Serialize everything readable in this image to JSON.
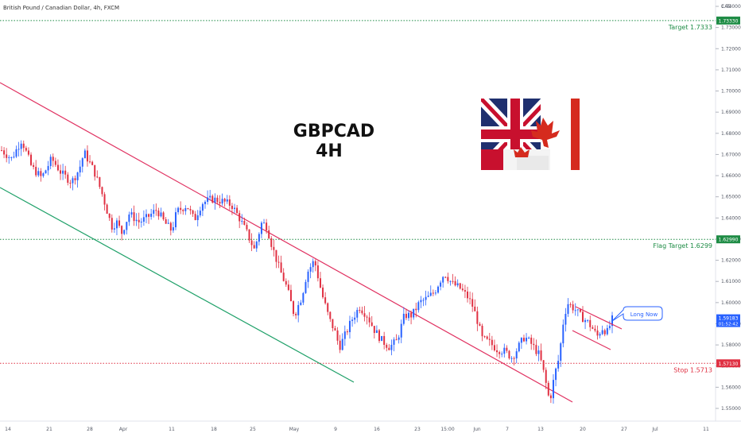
{
  "header": {
    "symbol_title": "British Pound / Canadian Dollar, 4h, FXCM",
    "currency": "CAD"
  },
  "annotations": {
    "pair": "GBPCAD",
    "timeframe": "4H",
    "callout": "Long Now"
  },
  "levels": [
    {
      "name": "target",
      "label": "Target 1.7333",
      "price": 1.7333,
      "tag": "1.73330",
      "color": "#1e8c45",
      "style": "dotted"
    },
    {
      "name": "flag-target",
      "label": "Flag Target 1.6299",
      "price": 1.6299,
      "tag": "1.62990",
      "color": "#1e8c45",
      "style": "dotted"
    },
    {
      "name": "stop",
      "label": "Stop 1.5713",
      "price": 1.5713,
      "tag": "1.57130",
      "color": "#e03042",
      "style": "dotted"
    }
  ],
  "current_price": {
    "tag": "1.59183",
    "sub": "01:52:42",
    "price": 1.59183,
    "color": "#2962ff"
  },
  "colors": {
    "bull": "#2962ff",
    "bear": "#e03042",
    "channel_upper": "#e03060",
    "channel_lower": "#1ea068",
    "flag": "#e03060",
    "callout_border": "#2962ff"
  },
  "chart_data": {
    "type": "candlestick",
    "title": "British Pound / Canadian Dollar, 4h, FXCM",
    "y_axis_label": "CAD",
    "ylim": [
      1.544,
      1.748
    ],
    "price_ticks": [
      "1.74000",
      "1.73000",
      "1.72000",
      "1.71000",
      "1.70000",
      "1.69000",
      "1.68000",
      "1.67000",
      "1.66000",
      "1.65000",
      "1.64000",
      "1.63000",
      "1.62000",
      "1.61000",
      "1.60000",
      "1.59000",
      "1.58000",
      "1.57000",
      "1.56000",
      "1.55000"
    ],
    "x_ticks": [
      "14",
      "21",
      "28",
      "Apr",
      "11",
      "18",
      "25",
      "May",
      "9",
      "16",
      "23",
      "15:00",
      "Jun",
      "7",
      "13",
      "20",
      "27",
      "Jul",
      "11"
    ],
    "series_path": [
      [
        0,
        1.672
      ],
      [
        4,
        1.668
      ],
      [
        8,
        1.677
      ],
      [
        12,
        1.664
      ],
      [
        16,
        1.659
      ],
      [
        20,
        1.668
      ],
      [
        24,
        1.661
      ],
      [
        28,
        1.657
      ],
      [
        31,
        1.663
      ],
      [
        33,
        1.671
      ],
      [
        37,
        1.662
      ],
      [
        40,
        1.652
      ],
      [
        44,
        1.636
      ],
      [
        46,
        1.638
      ],
      [
        48,
        1.633
      ],
      [
        51,
        1.642
      ],
      [
        55,
        1.638
      ],
      [
        58,
        1.64
      ],
      [
        62,
        1.644
      ],
      [
        65,
        1.638
      ],
      [
        68,
        1.634
      ],
      [
        70,
        1.643
      ],
      [
        74,
        1.646
      ],
      [
        77,
        1.639
      ],
      [
        80,
        1.647
      ],
      [
        84,
        1.649
      ],
      [
        88,
        1.648
      ],
      [
        92,
        1.646
      ],
      [
        95,
        1.64
      ],
      [
        98,
        1.633
      ],
      [
        101,
        1.625
      ],
      [
        104,
        1.638
      ],
      [
        106,
        1.636
      ],
      [
        108,
        1.627
      ],
      [
        111,
        1.616
      ],
      [
        114,
        1.607
      ],
      [
        117,
        1.594
      ],
      [
        120,
        1.603
      ],
      [
        122,
        1.614
      ],
      [
        125,
        1.62
      ],
      [
        128,
        1.604
      ],
      [
        131,
        1.592
      ],
      [
        133,
        1.587
      ],
      [
        135,
        1.579
      ],
      [
        137,
        1.584
      ],
      [
        140,
        1.592
      ],
      [
        143,
        1.598
      ],
      [
        146,
        1.594
      ],
      [
        149,
        1.587
      ],
      [
        152,
        1.582
      ],
      [
        155,
        1.579
      ],
      [
        158,
        1.582
      ],
      [
        161,
        1.594
      ],
      [
        164,
        1.594
      ],
      [
        167,
        1.6
      ],
      [
        170,
        1.602
      ],
      [
        173,
        1.605
      ],
      [
        175,
        1.61
      ],
      [
        177,
        1.614
      ],
      [
        180,
        1.609
      ],
      [
        183,
        1.607
      ],
      [
        186,
        1.603
      ],
      [
        188,
        1.599
      ],
      [
        190,
        1.592
      ],
      [
        192,
        1.583
      ],
      [
        195,
        1.581
      ],
      [
        198,
        1.578
      ],
      [
        201,
        1.577
      ],
      [
        204,
        1.574
      ],
      [
        207,
        1.58
      ],
      [
        209,
        1.584
      ],
      [
        212,
        1.58
      ],
      [
        215,
        1.575
      ],
      [
        217,
        1.565
      ],
      [
        219,
        1.553
      ],
      [
        221,
        1.566
      ],
      [
        223,
        1.575
      ],
      [
        224,
        1.588
      ],
      [
        226,
        1.6
      ],
      [
        229,
        1.597
      ],
      [
        231,
        1.594
      ],
      [
        234,
        1.591
      ],
      [
        236,
        1.588
      ],
      [
        238,
        1.584
      ],
      [
        240,
        1.588
      ],
      [
        242,
        1.586
      ],
      [
        244,
        1.592
      ]
    ],
    "series_x_domain": [
      0,
      244
    ],
    "series_x_note_units": "sequence index"
  }
}
